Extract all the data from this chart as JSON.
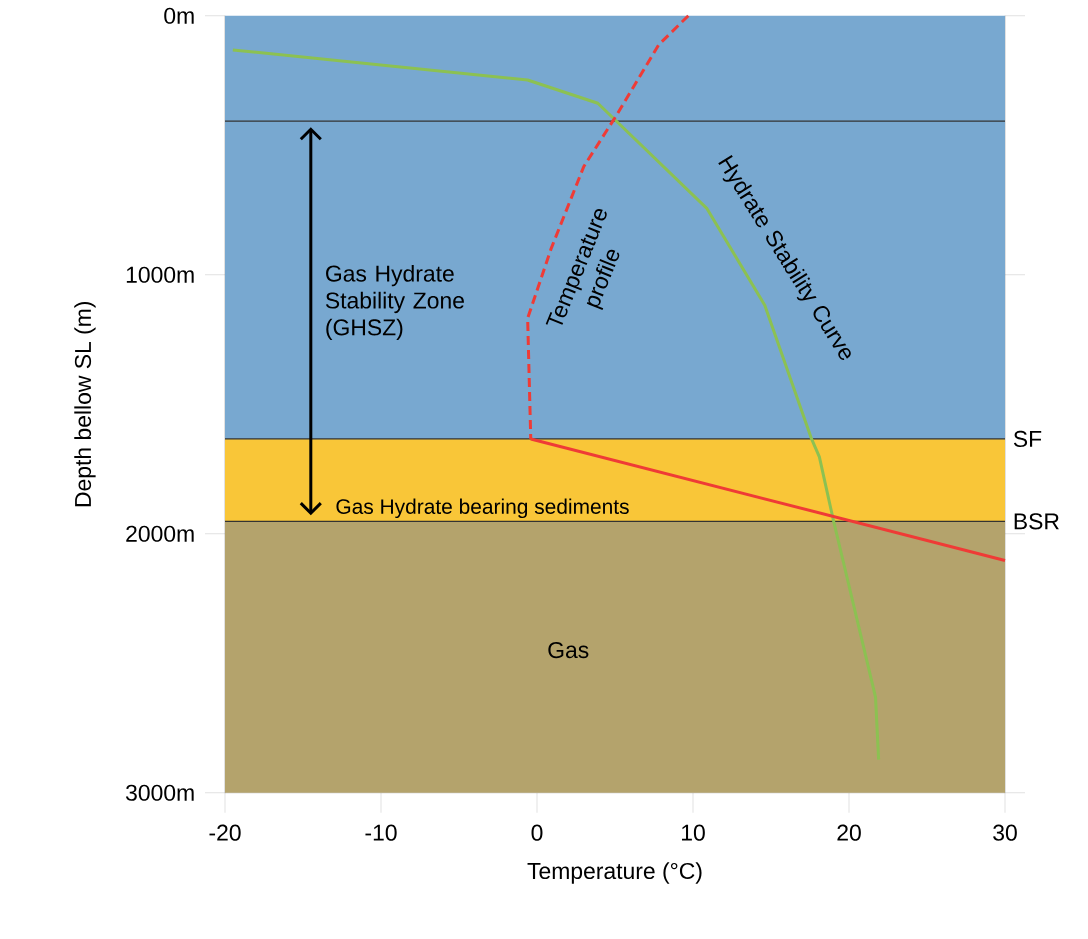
{
  "chart_data": {
    "type": "line",
    "xlabel": "Temperature (°C)",
    "ylabel": "Depth bellow SL (m)",
    "xlim": [
      -20,
      30
    ],
    "ylim": [
      3000,
      0
    ],
    "xticks": [
      -20,
      -10,
      0,
      10,
      20,
      30
    ],
    "yticks": [
      {
        "value": 0,
        "label": "0m"
      },
      {
        "value": 1000,
        "label": "1000m"
      },
      {
        "value": 2000,
        "label": "2000m"
      },
      {
        "value": 3000,
        "label": "3000m"
      }
    ],
    "grid": false,
    "marker": "none",
    "series": [
      {
        "color": "#8cc152",
        "line_style": "solid",
        "x": [
          -19.5,
          -0.6,
          3.9,
          10.9,
          14.6,
          17.6,
          18.1,
          19.0,
          21.7,
          21.9
        ],
        "values": [
          132,
          248,
          338,
          745,
          1118,
          1634,
          1703,
          1948,
          2631,
          2872
        ]
      },
      {
        "color": "#ef3b36",
        "line_style": "dashed",
        "x": [
          9.7,
          7.8,
          5.1,
          3.0,
          0.9,
          -0.6,
          -0.4
        ],
        "values": [
          0,
          112,
          384,
          582,
          900,
          1168,
          1634
        ]
      },
      {
        "color": "#ef3b36",
        "line_style": "solid",
        "x": [
          -0.4,
          30
        ],
        "values": [
          1634,
          2103
        ]
      }
    ],
    "bands": [
      {
        "axis": "y",
        "from": 0,
        "to": 1634,
        "color": "#78a8d0"
      },
      {
        "axis": "y",
        "from": 1634,
        "to": 1952,
        "color": "#f9c638",
        "label": "Gas Hydrate bearing sediments"
      },
      {
        "axis": "y",
        "from": 1952,
        "to": 3000,
        "color": "#b4a36c",
        "label": "Gas"
      }
    ],
    "ref_lines": [
      {
        "axis": "y",
        "value": 407
      },
      {
        "axis": "y",
        "value": 1634,
        "label": "SF"
      },
      {
        "axis": "y",
        "value": 1952,
        "label": "BSR"
      }
    ],
    "annotations": [
      "Gas Hydrate Stability Zone (GHSZ)",
      "Temperature profile",
      "Hydrate Stability Curve"
    ]
  }
}
